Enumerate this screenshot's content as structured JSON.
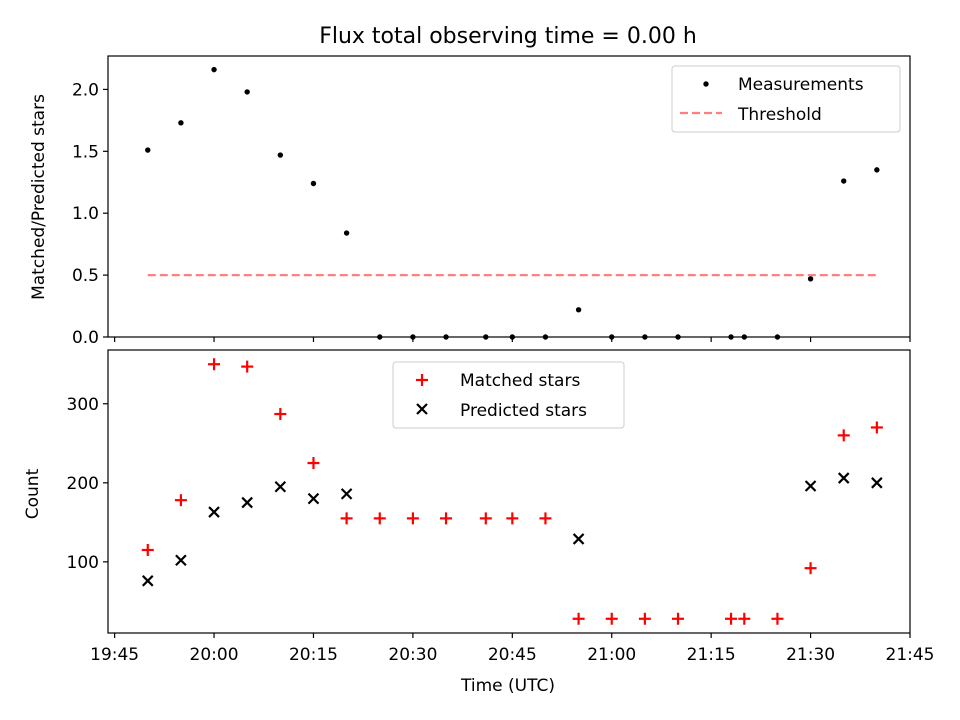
{
  "title": "Flux total observing time = 0.00 h",
  "chart_data": [
    {
      "type": "scatter",
      "ylabel": "Matched/Predicted stars",
      "xlabel": "",
      "xlim": [
        "19:44",
        "21:45"
      ],
      "ylim": [
        0,
        2.27
      ],
      "xticks": [
        "19:45",
        "20:00",
        "20:15",
        "20:30",
        "20:45",
        "21:00",
        "21:15",
        "21:30",
        "21:45"
      ],
      "yticks": [
        "0.0",
        "0.5",
        "1.0",
        "1.5",
        "2.0"
      ],
      "legend": {
        "position": "top-right",
        "entries": [
          "Measurements",
          "Threshold"
        ]
      },
      "grid": false,
      "series": [
        {
          "name": "Measurements",
          "style": "dot",
          "color": "#000000",
          "x": [
            "19:50",
            "19:55",
            "20:00",
            "20:05",
            "20:10",
            "20:15",
            "20:20",
            "20:25",
            "20:30",
            "20:35",
            "20:41",
            "20:45",
            "20:50",
            "20:55",
            "21:00",
            "21:05",
            "21:10",
            "21:18",
            "21:20",
            "21:25",
            "21:30",
            "21:35",
            "21:40"
          ],
          "y": [
            1.51,
            1.73,
            2.16,
            1.98,
            1.47,
            1.24,
            0.84,
            0.0,
            0.0,
            0.0,
            0.0,
            0.0,
            0.0,
            0.22,
            0.0,
            0.0,
            0.0,
            0.0,
            0.0,
            0.0,
            0.47,
            1.26,
            1.35
          ]
        },
        {
          "name": "Threshold",
          "style": "dashed-line",
          "color": "#ff7f7f",
          "x": [
            "19:50",
            "21:40"
          ],
          "y": [
            0.5,
            0.5
          ]
        }
      ]
    },
    {
      "type": "scatter",
      "ylabel": "Count",
      "xlabel": "Time (UTC)",
      "xlim": [
        "19:44",
        "21:45"
      ],
      "ylim": [
        10,
        368
      ],
      "xticks": [
        "19:45",
        "20:00",
        "20:15",
        "20:30",
        "20:45",
        "21:00",
        "21:15",
        "21:30",
        "21:45"
      ],
      "yticks": [
        "100",
        "200",
        "300"
      ],
      "legend": {
        "position": "top-center",
        "entries": [
          "Matched stars",
          "Predicted stars"
        ]
      },
      "grid": false,
      "series": [
        {
          "name": "Matched stars",
          "style": "plus",
          "color": "#ff0000",
          "x": [
            "19:50",
            "19:55",
            "20:00",
            "20:05",
            "20:10",
            "20:15",
            "20:20",
            "20:25",
            "20:30",
            "20:35",
            "20:41",
            "20:45",
            "20:50",
            "20:55",
            "21:00",
            "21:05",
            "21:10",
            "21:18",
            "21:20",
            "21:25",
            "21:30",
            "21:35",
            "21:40"
          ],
          "y": [
            115,
            178,
            350,
            347,
            287,
            225,
            155,
            155,
            155,
            155,
            155,
            155,
            155,
            28,
            28,
            28,
            28,
            28,
            28,
            28,
            92,
            260,
            270
          ]
        },
        {
          "name": "Predicted stars",
          "style": "x",
          "color": "#000000",
          "x": [
            "19:50",
            "19:55",
            "20:00",
            "20:05",
            "20:10",
            "20:15",
            "20:20",
            "20:55",
            "21:30",
            "21:35",
            "21:40"
          ],
          "y": [
            76,
            102,
            163,
            175,
            195,
            180,
            186,
            129,
            196,
            206,
            200
          ]
        }
      ]
    }
  ]
}
